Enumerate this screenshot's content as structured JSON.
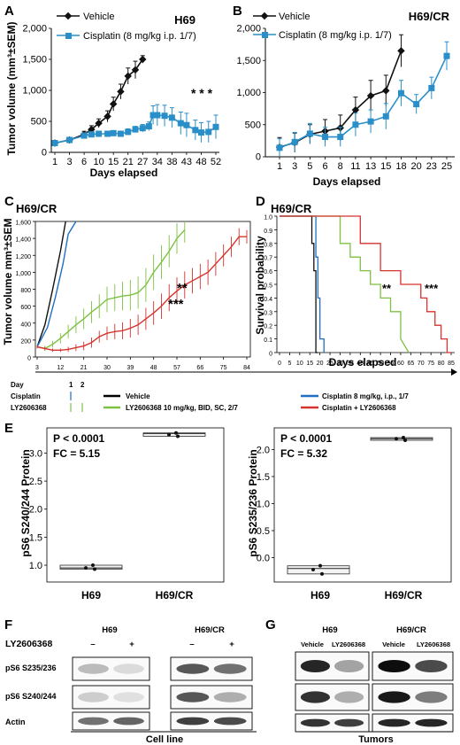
{
  "panels": {
    "A": {
      "letter": "A",
      "title": "H69",
      "ylabel": "Tumor volume (mm³±SEM)",
      "xlabel": "Days elapsed",
      "legend": [
        "Vehicle",
        "Cisplatin (8 mg/kg i.p. 1/7)"
      ],
      "annotation": "* * *",
      "yticks": [
        "0",
        "500",
        "1,000",
        "1,500",
        "2,000"
      ],
      "xticks": [
        "1",
        "3",
        "6",
        "10",
        "15",
        "21",
        "27",
        "34",
        "38",
        "43",
        "48",
        "52"
      ]
    },
    "B": {
      "letter": "B",
      "title": "H69/CR",
      "xlabel": "Days elapsed",
      "legend": [
        "Vehicle",
        "Cisplatin (8 mg/kg i.p. 1/7)"
      ],
      "yticks": [
        "0",
        "500",
        "1,000",
        "1,500",
        "2,000"
      ],
      "xticks": [
        "1",
        "3",
        "5",
        "6",
        "8",
        "11",
        "13",
        "15",
        "18",
        "20",
        "23",
        "25"
      ]
    },
    "C": {
      "letter": "C",
      "title": "H69/CR",
      "ylabel": "Tumor volume mm³±SEM",
      "yticks": [
        "0",
        "200",
        "400",
        "600",
        "800",
        "1,000",
        "1,200",
        "1,400",
        "1,600"
      ],
      "xticks": [
        "3",
        "12",
        "21",
        "30",
        "39",
        "48",
        "57",
        "66",
        "75",
        "84"
      ],
      "annot1": "**",
      "annot2": "***"
    },
    "D": {
      "letter": "D",
      "title": "H69/CR",
      "ylabel": "Survival probability",
      "yticks": [
        "0",
        "0.1",
        "0.2",
        "0.3",
        "0.4",
        "0.5",
        "0.6",
        "0.7",
        "0.8",
        "0.9",
        "1.0"
      ],
      "xticks": [
        "0",
        "5",
        "10",
        "15",
        "20",
        "25",
        "30",
        "35",
        "40",
        "45",
        "50",
        "55",
        "60",
        "65",
        "70",
        "75",
        "80",
        "85"
      ],
      "annot1": "**",
      "annot2": "***"
    },
    "CD_xlabel": "Days elapsed",
    "schedule": {
      "day_label": "Day",
      "day1": "1",
      "day2": "2",
      "cisplatin_label": "Cisplatin",
      "ly_label": "LY2606368"
    },
    "CD_legend": [
      {
        "label": "Vehicle",
        "color": "#000000"
      },
      {
        "label": "Cisplatin 8 mg/kg, i.p., 1/7",
        "color": "#1f6fc4"
      },
      {
        "label": "LY2606368 10 mg/kg, BID, SC, 2/7",
        "color": "#7dc142"
      },
      {
        "label": "Cisplatin + LY2606368",
        "color": "#d6332e"
      }
    ],
    "E": {
      "letter": "E",
      "left": {
        "ylabel": "pS6 S240/244 Protein",
        "p": "P < 0.0001",
        "fc": "FC = 5.15",
        "yticks": [
          "1.0",
          "1.5",
          "2.0",
          "2.5",
          "3.0"
        ],
        "categories": [
          "H69",
          "H69/CR"
        ]
      },
      "right": {
        "ylabel": "pS6 S235/236 Protein",
        "p": "P < 0.0001",
        "fc": "FC = 5.32",
        "yticks": [
          "0.0",
          "0.5",
          "1.0",
          "1.5",
          "2.0"
        ],
        "categories": [
          "H69",
          "H69/CR"
        ]
      }
    },
    "F": {
      "letter": "F",
      "treat_label": "LY2606368",
      "groups": [
        "H69",
        "H69/CR"
      ],
      "signs": [
        "–",
        "+",
        "–",
        "+"
      ],
      "rows": [
        "pS6 S235/236",
        "pS6 S240/244",
        "Actin"
      ],
      "footer": "Cell line"
    },
    "G": {
      "letter": "G",
      "groups": [
        "H69",
        "H69/CR"
      ],
      "lanes": [
        "Vehicle",
        "LY2606368",
        "Vehicle",
        "LY2606368"
      ],
      "footer": "Tumors"
    }
  },
  "chart_data": [
    {
      "type": "line",
      "panel": "A",
      "title": "H69",
      "xlabel": "Days elapsed",
      "ylabel": "Tumor volume (mm³±SEM)",
      "ylim": [
        0,
        2000
      ],
      "series": [
        {
          "name": "Vehicle",
          "color": "#111111",
          "x": [
            1,
            3,
            6,
            8,
            10,
            13,
            15,
            18,
            21,
            24,
            27
          ],
          "y": [
            150,
            200,
            290,
            370,
            470,
            580,
            780,
            980,
            1230,
            1330,
            1500
          ],
          "err": [
            30,
            40,
            50,
            60,
            70,
            90,
            110,
            120,
            130,
            140,
            60
          ]
        },
        {
          "name": "Cisplatin (8 mg/kg i.p. 1/7)",
          "color": "#2a8fc8",
          "x": [
            1,
            3,
            6,
            8,
            10,
            13,
            15,
            18,
            21,
            24,
            27,
            30,
            32,
            34,
            36,
            38,
            41,
            43,
            46,
            48,
            50,
            52
          ],
          "y": [
            150,
            200,
            270,
            290,
            300,
            300,
            310,
            300,
            330,
            370,
            390,
            420,
            600,
            600,
            590,
            560,
            470,
            440,
            360,
            320,
            330,
            410
          ],
          "err": [
            20,
            30,
            40,
            40,
            40,
            40,
            40,
            40,
            50,
            50,
            60,
            70,
            150,
            170,
            170,
            160,
            180,
            190,
            160,
            160,
            170,
            190
          ]
        }
      ]
    },
    {
      "type": "line",
      "panel": "B",
      "title": "H69/CR",
      "xlabel": "Days elapsed",
      "ylim": [
        0,
        2000
      ],
      "series": [
        {
          "name": "Vehicle",
          "color": "#111111",
          "x": [
            1,
            3,
            5,
            6,
            8,
            11,
            13,
            15,
            18
          ],
          "y": [
            150,
            220,
            350,
            400,
            450,
            730,
            950,
            1030,
            1650
          ],
          "err": [
            150,
            150,
            150,
            180,
            200,
            200,
            240,
            240,
            250
          ]
        },
        {
          "name": "Cisplatin (8 mg/kg i.p. 1/7)",
          "color": "#2a8fc8",
          "x": [
            1,
            3,
            5,
            6,
            8,
            11,
            13,
            15,
            18,
            20,
            23,
            25
          ],
          "y": [
            140,
            230,
            360,
            310,
            310,
            500,
            550,
            630,
            990,
            820,
            1070,
            1570
          ],
          "err": [
            140,
            150,
            160,
            150,
            150,
            180,
            180,
            200,
            200,
            150,
            170,
            220
          ]
        }
      ]
    },
    {
      "type": "line",
      "panel": "C",
      "title": "H69/CR",
      "ylabel": "Tumor volume mm³±SEM",
      "xlabel": "Days elapsed",
      "ylim": [
        0,
        1600
      ],
      "xlim": [
        3,
        84
      ],
      "series": [
        {
          "name": "Vehicle",
          "color": "#111111",
          "x": [
            3,
            6,
            9,
            12,
            14
          ],
          "y": [
            120,
            380,
            800,
            1250,
            1600
          ]
        },
        {
          "name": "Cisplatin 8 mg/kg, i.p., 1/7",
          "color": "#1f6fc4",
          "x": [
            3,
            7,
            10,
            13,
            15,
            18
          ],
          "y": [
            120,
            350,
            700,
            1100,
            1450,
            1600
          ]
        },
        {
          "name": "LY2606368 10 mg/kg, BID, SC, 2/7",
          "color": "#7dc142",
          "x": [
            3,
            6,
            9,
            12,
            15,
            18,
            21,
            24,
            27,
            30,
            33,
            36,
            39,
            42,
            45,
            48,
            51,
            54,
            57,
            60
          ],
          "y": [
            120,
            100,
            150,
            220,
            300,
            380,
            450,
            530,
            600,
            680,
            700,
            720,
            730,
            760,
            850,
            1000,
            1120,
            1250,
            1400,
            1500
          ],
          "err": [
            20,
            30,
            40,
            60,
            80,
            100,
            120,
            130,
            140,
            150,
            160,
            170,
            180,
            190,
            200,
            210,
            200,
            190,
            180,
            150
          ]
        },
        {
          "name": "Cisplatin + LY2606368",
          "color": "#d6332e",
          "x": [
            3,
            6,
            9,
            12,
            15,
            18,
            21,
            24,
            27,
            30,
            33,
            36,
            39,
            42,
            45,
            48,
            51,
            54,
            57,
            60,
            63,
            66,
            69,
            72,
            75,
            78,
            81,
            84
          ],
          "y": [
            120,
            100,
            80,
            80,
            90,
            110,
            130,
            170,
            240,
            280,
            300,
            310,
            340,
            380,
            450,
            520,
            600,
            700,
            780,
            850,
            900,
            950,
            1000,
            1100,
            1200,
            1300,
            1420,
            1420
          ],
          "err": [
            20,
            20,
            20,
            20,
            30,
            40,
            50,
            60,
            70,
            80,
            90,
            100,
            110,
            120,
            130,
            140,
            150,
            160,
            160,
            160,
            150,
            150,
            150,
            140,
            130,
            120,
            100,
            80
          ]
        }
      ]
    },
    {
      "type": "line",
      "panel": "D",
      "title": "H69/CR",
      "subtype": "kaplan-meier",
      "ylabel": "Survival probability",
      "xlabel": "Days elapsed",
      "ylim": [
        0,
        1
      ],
      "xlim": [
        0,
        85
      ],
      "series": [
        {
          "name": "Vehicle",
          "color": "#111111",
          "x": [
            0,
            16,
            16,
            17,
            17,
            18,
            18,
            19
          ],
          "y": [
            1,
            1,
            0.8,
            0.8,
            0.6,
            0.6,
            0,
            0
          ]
        },
        {
          "name": "Cisplatin 8 mg/kg, i.p., 1/7",
          "color": "#1f6fc4",
          "x": [
            0,
            18,
            18,
            19,
            19,
            20,
            20,
            22,
            22
          ],
          "y": [
            1,
            1,
            0.7,
            0.7,
            0.4,
            0.4,
            0.1,
            0.1,
            0
          ]
        },
        {
          "name": "LY2606368 10 mg/kg, BID, SC, 2/7",
          "color": "#7dc142",
          "x": [
            0,
            30,
            30,
            35,
            35,
            40,
            40,
            45,
            45,
            50,
            50,
            55,
            55,
            60,
            60,
            64
          ],
          "y": [
            1,
            1,
            0.8,
            0.8,
            0.7,
            0.7,
            0.6,
            0.6,
            0.5,
            0.5,
            0.4,
            0.4,
            0.3,
            0.3,
            0.1,
            0
          ]
        },
        {
          "name": "Cisplatin + LY2606368",
          "color": "#d6332e",
          "x": [
            0,
            40,
            40,
            50,
            50,
            60,
            60,
            70,
            70,
            73,
            73,
            77,
            77,
            80,
            80,
            83,
            83,
            85
          ],
          "y": [
            1,
            1,
            0.8,
            0.8,
            0.6,
            0.6,
            0.5,
            0.5,
            0.4,
            0.4,
            0.3,
            0.3,
            0.2,
            0.2,
            0.1,
            0.1,
            0,
            0
          ]
        }
      ]
    },
    {
      "type": "scatter",
      "panel": "E-left",
      "ylabel": "pS6 S240/244 Protein",
      "categories": [
        "H69",
        "H69/CR"
      ],
      "values": [
        [
          0.95,
          1.0,
          0.93
        ],
        [
          3.33,
          3.36,
          3.3
        ]
      ],
      "box_median": [
        0.95,
        3.35
      ]
    },
    {
      "type": "scatter",
      "panel": "E-right",
      "ylabel": "pS6 S235/236 Protein",
      "categories": [
        "H69",
        "H69/CR"
      ],
      "values": [
        [
          -0.22,
          -0.15,
          -0.3
        ],
        [
          2.2,
          2.22,
          2.17
        ]
      ],
      "box_median": [
        -0.2,
        2.2
      ]
    }
  ]
}
